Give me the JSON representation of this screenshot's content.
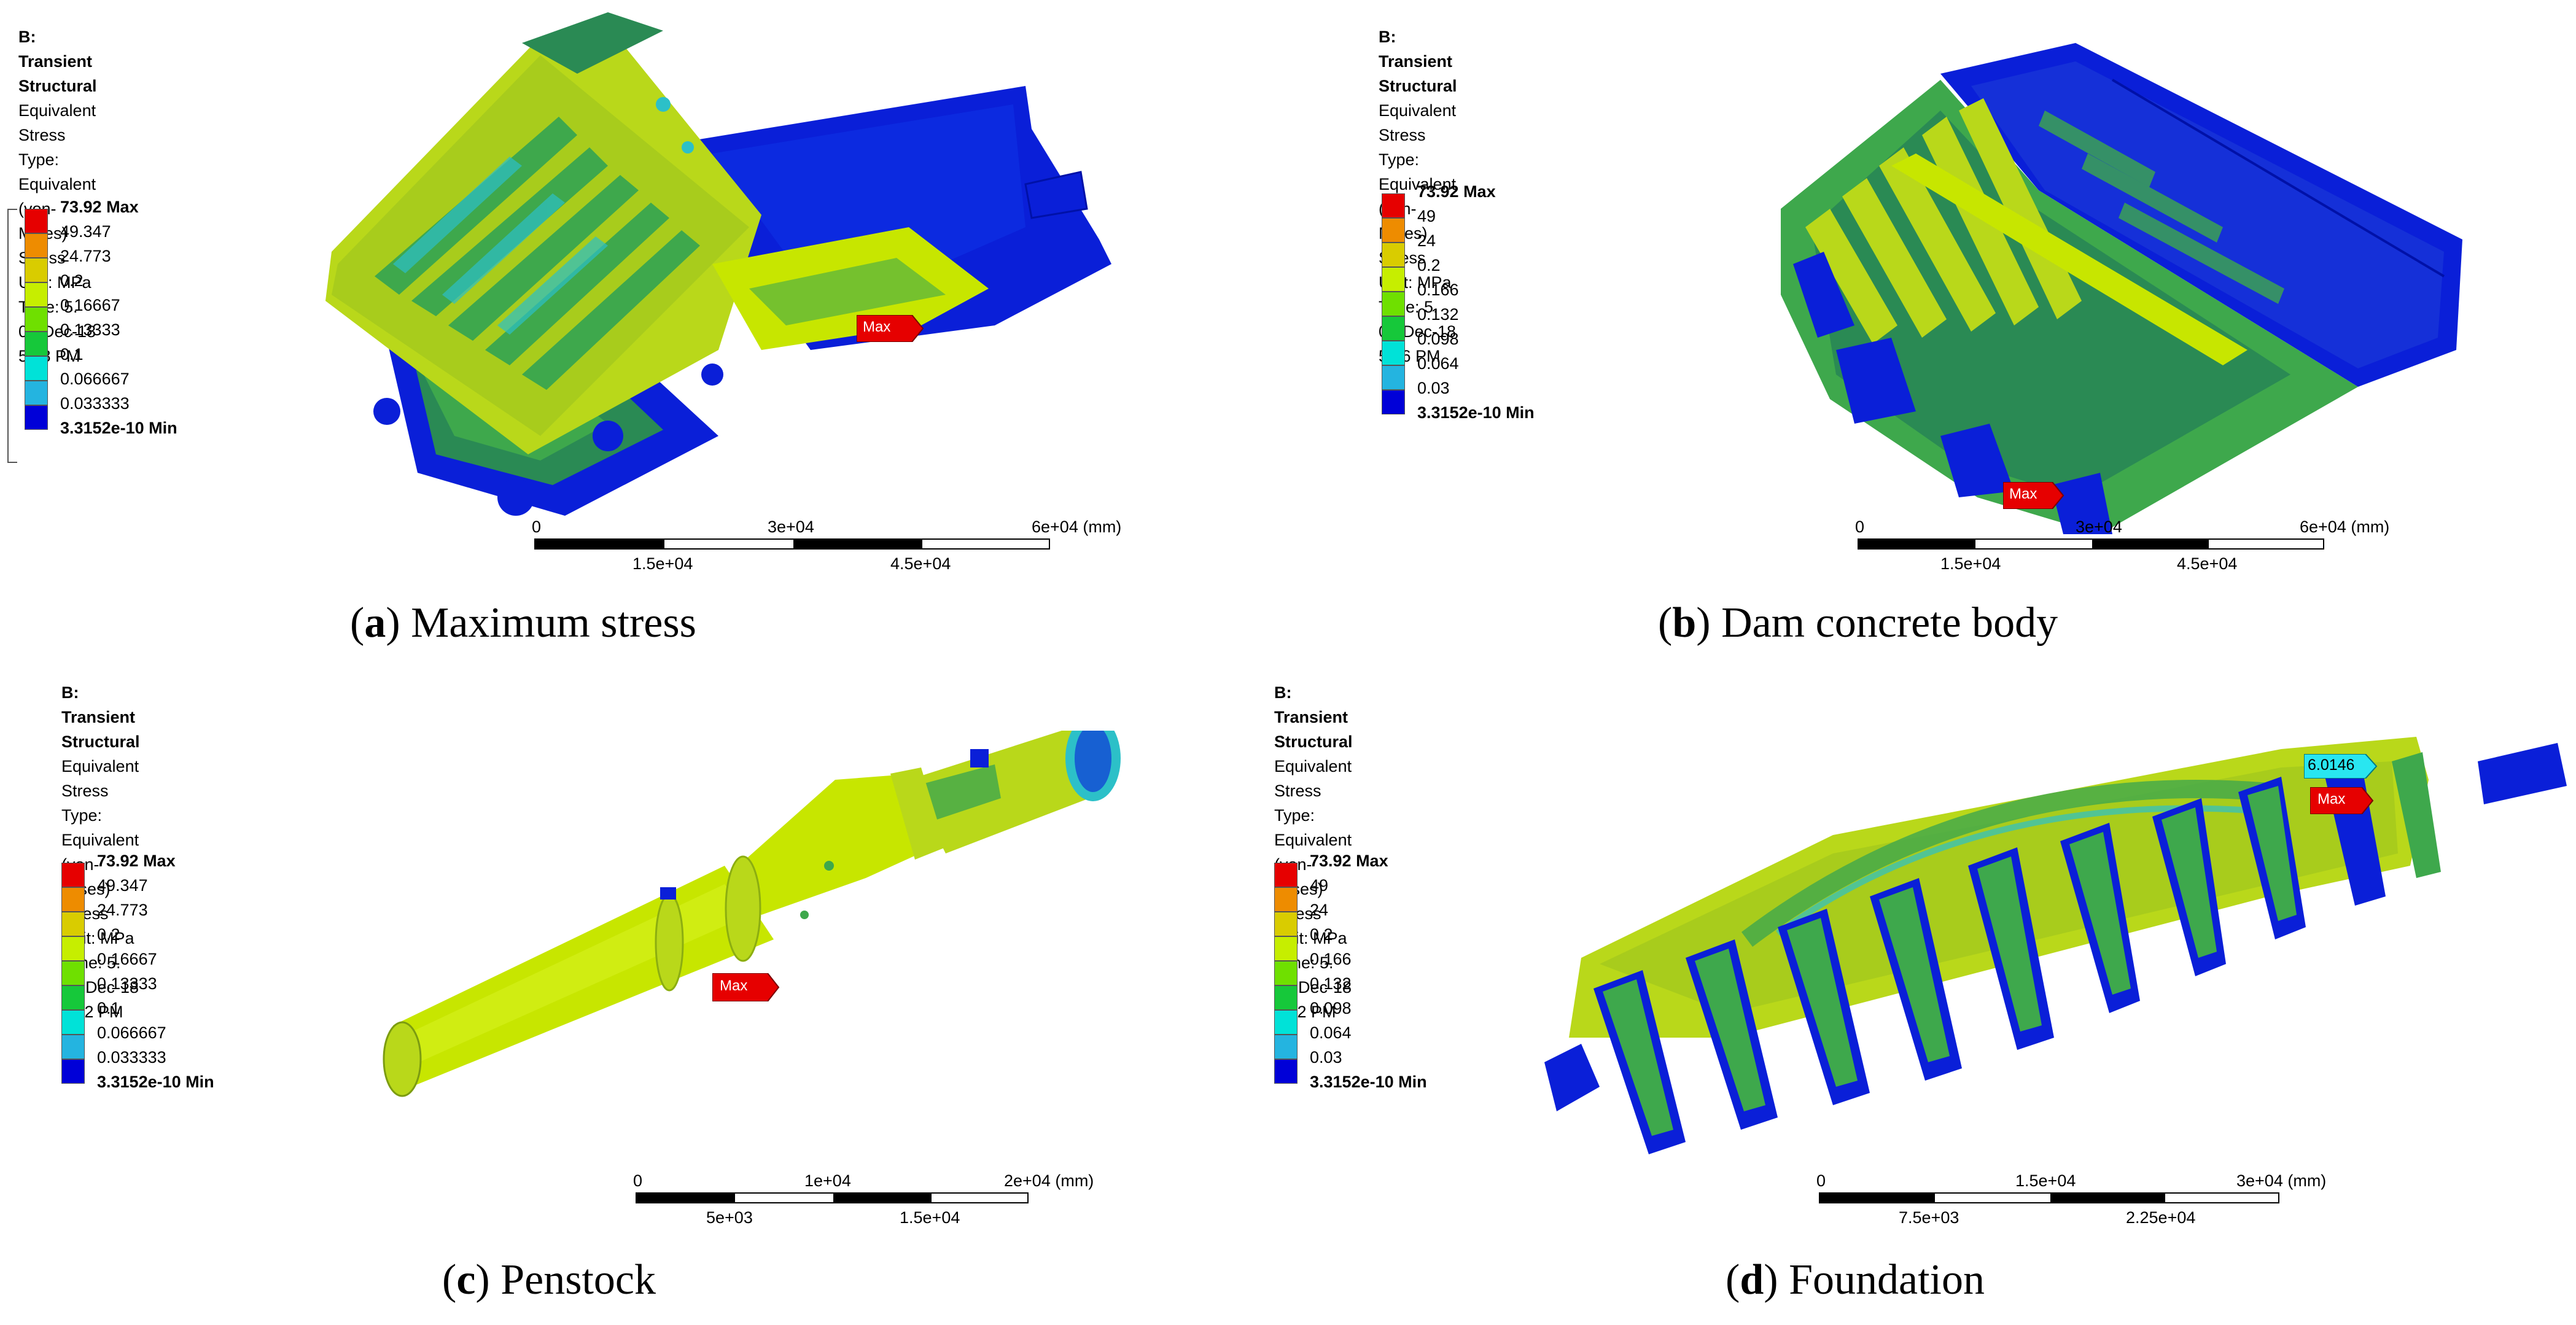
{
  "panels": [
    {
      "info": {
        "title": "B: Transient Structural",
        "line1": "Equivalent Stress",
        "line2": "Type: Equivalent (von-Mises) Stress",
        "line3": "Unit: MPa",
        "line4": "Time: 5.",
        "line5": "04-Dec-18 5:38 PM"
      },
      "legend": [
        "73.92 Max",
        "49.347",
        "24.773",
        "0.2",
        "0.16667",
        "0.13333",
        "0.1",
        "0.066667",
        "0.033333",
        "3.3152e-10 Min"
      ],
      "scale": {
        "top": [
          "0",
          "3e+04",
          "6e+04 (mm)"
        ],
        "bottom": [
          "1.5e+04",
          "4.5e+04"
        ]
      },
      "marker": "Max",
      "caption": {
        "letter": "a",
        "text": "Maximum stress"
      }
    },
    {
      "info": {
        "title": "B: Transient Structural",
        "line1": "Equivalent Stress",
        "line2": "Type: Equivalent (von-Mises) Stress",
        "line3": "Unit: MPa",
        "line4": "Time: 5.",
        "line5": "04-Dec-18 5:56 PM"
      },
      "legend": [
        "73.92 Max",
        "49",
        "24",
        "0.2",
        "0.166",
        "0.132",
        "0.098",
        "0.064",
        "0.03",
        "3.3152e-10 Min"
      ],
      "scale": {
        "top": [
          "0",
          "3e+04",
          "6e+04 (mm)"
        ],
        "bottom": [
          "1.5e+04",
          "4.5e+04"
        ]
      },
      "marker": "Max",
      "caption": {
        "letter": "b",
        "text": "Dam concrete body"
      }
    },
    {
      "info": {
        "title": "B: Transient Structural",
        "line1": "Equivalent Stress",
        "line2": "Type: Equivalent (von-Mises) Stress",
        "line3": "Unit: MPa",
        "line4": "Time: 5.",
        "line5": "04-Dec-18 5:42 PM"
      },
      "legend": [
        "73.92 Max",
        "49.347",
        "24.773",
        "0.2",
        "0.16667",
        "0.13333",
        "0.1",
        "0.066667",
        "0.033333",
        "3.3152e-10 Min"
      ],
      "scale": {
        "top": [
          "0",
          "1e+04",
          "2e+04 (mm)"
        ],
        "bottom": [
          "5e+03",
          "1.5e+04"
        ]
      },
      "marker": "Max",
      "caption": {
        "letter": "c",
        "text": "Penstock"
      }
    },
    {
      "info": {
        "title": "B: Transient Structural",
        "line1": "Equivalent Stress",
        "line2": "Type: Equivalent (von-Mises) Stress",
        "line3": "Unit: MPa",
        "line4": "Time: 5.",
        "line5": "04-Dec-18 5:52 PM"
      },
      "legend": [
        "73.92 Max",
        "49",
        "24",
        "0.2",
        "0.166",
        "0.132",
        "0.098",
        "0.064",
        "0.03",
        "3.3152e-10 Min"
      ],
      "scale": {
        "top": [
          "0",
          "1.5e+04",
          "3e+04 (mm)"
        ],
        "bottom": [
          "7.5e+03",
          "2.25e+04"
        ]
      },
      "marker": "Max",
      "probe": "6.0146",
      "caption": {
        "letter": "d",
        "text": "Foundation"
      }
    }
  ],
  "legend_colors": [
    "#e60000",
    "#ee8c00",
    "#d9cc00",
    "#c6ee00",
    "#6fe000",
    "#16c83a",
    "#00e2d8",
    "#24b4e0",
    "#1a6fe8",
    "#0000d8"
  ],
  "model_colors": {
    "stress_high": "#c7e600",
    "stress_mid": "#3ea84c",
    "stress_low": "#2cc0c8",
    "stress_min": "#0a1fd8",
    "body": "#b9d81a"
  }
}
